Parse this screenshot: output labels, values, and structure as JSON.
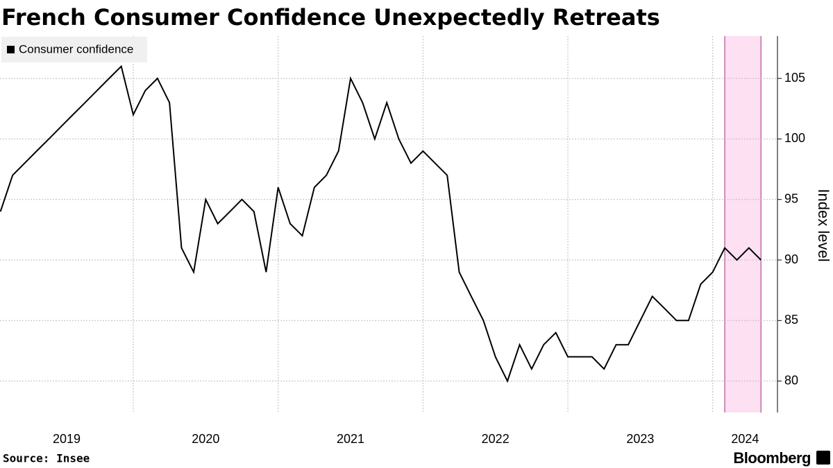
{
  "chart_data": {
    "type": "line",
    "title": "French Consumer Confidence Unexpectedly Retreats",
    "y_axis_label": "Index level",
    "source": "Source: Insee",
    "brand": "Bloomberg",
    "legend_position": "top-left",
    "grid": true,
    "x": [
      2019.083,
      2019.167,
      2019.25,
      2019.333,
      2019.417,
      2019.5,
      2019.583,
      2019.667,
      2019.75,
      2019.833,
      2019.917,
      2020,
      2020.083,
      2020.167,
      2020.25,
      2020.333,
      2020.417,
      2020.5,
      2020.583,
      2020.667,
      2020.75,
      2020.833,
      2020.917,
      2021,
      2021.083,
      2021.167,
      2021.25,
      2021.333,
      2021.417,
      2021.5,
      2021.583,
      2021.667,
      2021.75,
      2021.833,
      2021.917,
      2022,
      2022.083,
      2022.167,
      2022.25,
      2022.333,
      2022.417,
      2022.5,
      2022.583,
      2022.667,
      2022.75,
      2022.833,
      2022.917,
      2023,
      2023.083,
      2023.167,
      2023.25,
      2023.333,
      2023.417,
      2023.5,
      2023.583,
      2023.667,
      2023.75,
      2023.833,
      2023.917,
      2024,
      2024.083,
      2024.167,
      2024.25,
      2024.333
    ],
    "series": [
      {
        "name": "Consumer confidence",
        "color": "#000000",
        "values": [
          94,
          97,
          98,
          99,
          100,
          101,
          102,
          103,
          104,
          105,
          106,
          102,
          104,
          105,
          103,
          91,
          89,
          95,
          93,
          94,
          95,
          94,
          89,
          96,
          93,
          92,
          96,
          97,
          99,
          105,
          103,
          100,
          103,
          100,
          98,
          99,
          98,
          97,
          89,
          87,
          85,
          82,
          80,
          83,
          81,
          83,
          84,
          82,
          82,
          82,
          81,
          83,
          83,
          85,
          87,
          86,
          85,
          85,
          88,
          89,
          91,
          90,
          91,
          90
        ]
      }
    ],
    "highlight": {
      "range": [
        2024.083,
        2024.333
      ],
      "color": "#fde0f1",
      "edge_color": "#b0267f"
    },
    "xlim": [
      2019.08,
      2024.447
    ],
    "xticks": [
      2020,
      2021,
      2022,
      2023,
      2024
    ],
    "x_tick_labels": [
      2019,
      2020,
      2021,
      2022,
      2023,
      2024
    ],
    "ylim": [
      77.4,
      108.5
    ],
    "yticks": [
      80,
      85,
      90,
      95,
      100,
      105
    ]
  }
}
